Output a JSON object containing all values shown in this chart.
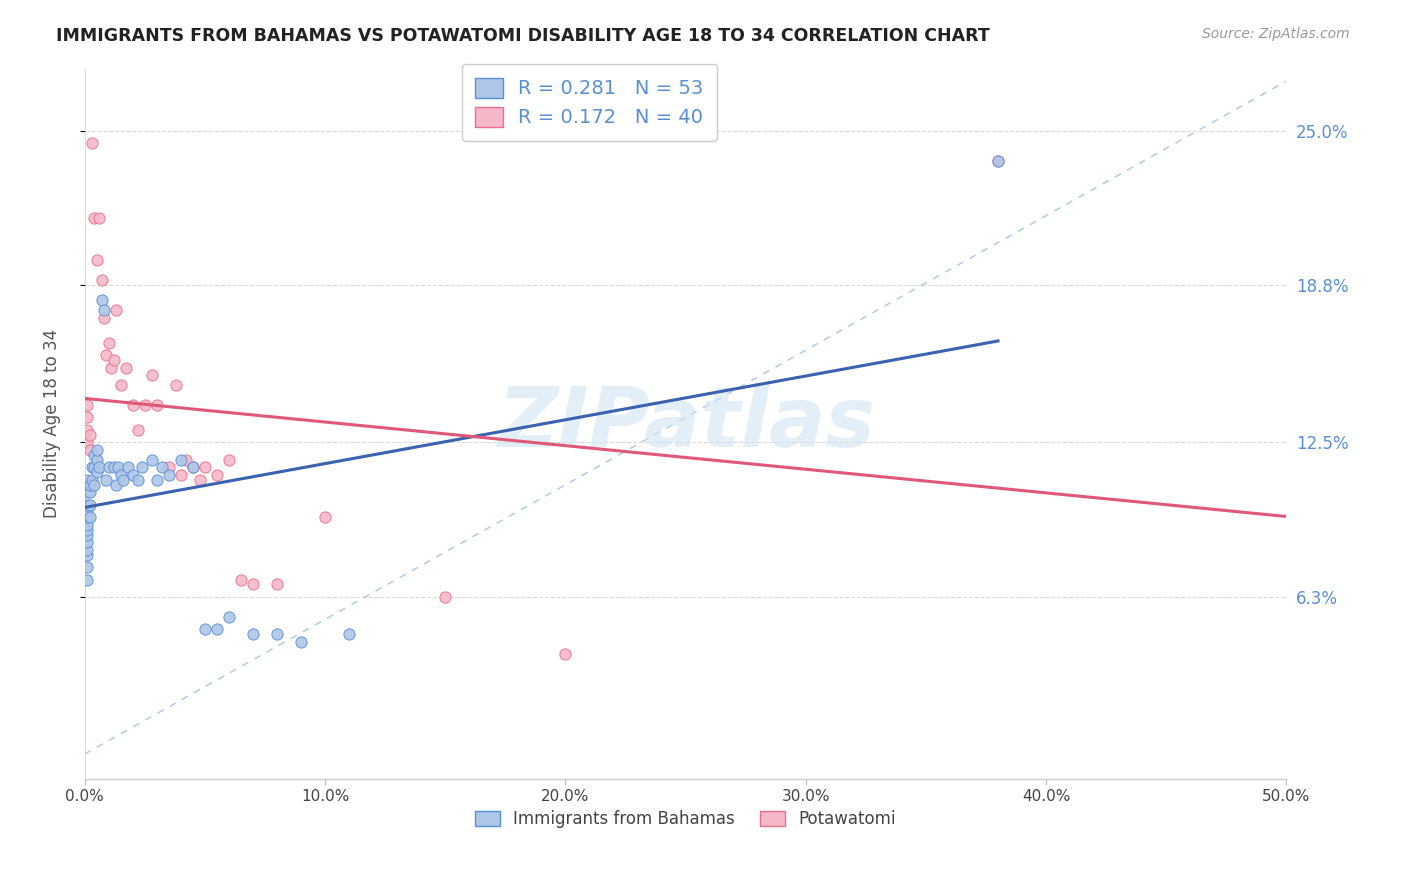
{
  "title": "IMMIGRANTS FROM BAHAMAS VS POTAWATOMI DISABILITY AGE 18 TO 34 CORRELATION CHART",
  "source": "Source: ZipAtlas.com",
  "xlabel_ticks": [
    "0.0%",
    "10.0%",
    "20.0%",
    "30.0%",
    "40.0%",
    "50.0%"
  ],
  "xlabel_vals": [
    0.0,
    0.1,
    0.2,
    0.3,
    0.4,
    0.5
  ],
  "ylabel_ticks": [
    "6.3%",
    "12.5%",
    "18.8%",
    "25.0%"
  ],
  "ylabel_vals": [
    0.063,
    0.125,
    0.188,
    0.25
  ],
  "ylabel_label": "Disability Age 18 to 34",
  "xmin": 0.0,
  "xmax": 0.5,
  "ymin": -0.01,
  "ymax": 0.275,
  "blue_R": 0.281,
  "blue_N": 53,
  "pink_R": 0.172,
  "pink_N": 40,
  "blue_color": "#aec6e8",
  "blue_edge_color": "#5b8fd4",
  "pink_color": "#f5b8c8",
  "pink_edge_color": "#e8708a",
  "dashed_line_color": "#a8c8e8",
  "blue_line_color": "#3a62b0",
  "pink_line_color": "#e05878",
  "watermark_color": "#d0e4f4",
  "watermark": "ZIPatlas",
  "legend_label_blue": "Immigrants from Bahamas",
  "legend_label_pink": "Potawatomi",
  "blue_scatter_x": [
    0.001,
    0.001,
    0.001,
    0.001,
    0.001,
    0.001,
    0.001,
    0.001,
    0.001,
    0.001,
    0.001,
    0.001,
    0.001,
    0.002,
    0.002,
    0.002,
    0.002,
    0.003,
    0.003,
    0.004,
    0.004,
    0.004,
    0.005,
    0.005,
    0.005,
    0.006,
    0.007,
    0.008,
    0.009,
    0.01,
    0.012,
    0.013,
    0.014,
    0.015,
    0.016,
    0.018,
    0.02,
    0.022,
    0.024,
    0.028,
    0.03,
    0.032,
    0.035,
    0.04,
    0.045,
    0.05,
    0.055,
    0.06,
    0.07,
    0.08,
    0.09,
    0.11,
    0.38
  ],
  "blue_scatter_y": [
    0.07,
    0.075,
    0.08,
    0.082,
    0.085,
    0.088,
    0.09,
    0.092,
    0.095,
    0.098,
    0.1,
    0.105,
    0.11,
    0.095,
    0.1,
    0.105,
    0.108,
    0.11,
    0.115,
    0.108,
    0.115,
    0.12,
    0.113,
    0.118,
    0.122,
    0.115,
    0.182,
    0.178,
    0.11,
    0.115,
    0.115,
    0.108,
    0.115,
    0.112,
    0.11,
    0.115,
    0.112,
    0.11,
    0.115,
    0.118,
    0.11,
    0.115,
    0.112,
    0.118,
    0.115,
    0.05,
    0.05,
    0.055,
    0.048,
    0.048,
    0.045,
    0.048,
    0.238
  ],
  "pink_scatter_x": [
    0.001,
    0.001,
    0.001,
    0.001,
    0.002,
    0.002,
    0.003,
    0.004,
    0.005,
    0.006,
    0.007,
    0.008,
    0.009,
    0.01,
    0.011,
    0.012,
    0.013,
    0.015,
    0.017,
    0.02,
    0.022,
    0.025,
    0.028,
    0.03,
    0.035,
    0.038,
    0.04,
    0.042,
    0.045,
    0.048,
    0.05,
    0.055,
    0.06,
    0.065,
    0.07,
    0.08,
    0.1,
    0.15,
    0.2,
    0.38
  ],
  "pink_scatter_y": [
    0.125,
    0.13,
    0.135,
    0.14,
    0.122,
    0.128,
    0.245,
    0.215,
    0.198,
    0.215,
    0.19,
    0.175,
    0.16,
    0.165,
    0.155,
    0.158,
    0.178,
    0.148,
    0.155,
    0.14,
    0.13,
    0.14,
    0.152,
    0.14,
    0.115,
    0.148,
    0.112,
    0.118,
    0.115,
    0.11,
    0.115,
    0.112,
    0.118,
    0.07,
    0.068,
    0.068,
    0.095,
    0.063,
    0.04,
    0.238
  ]
}
